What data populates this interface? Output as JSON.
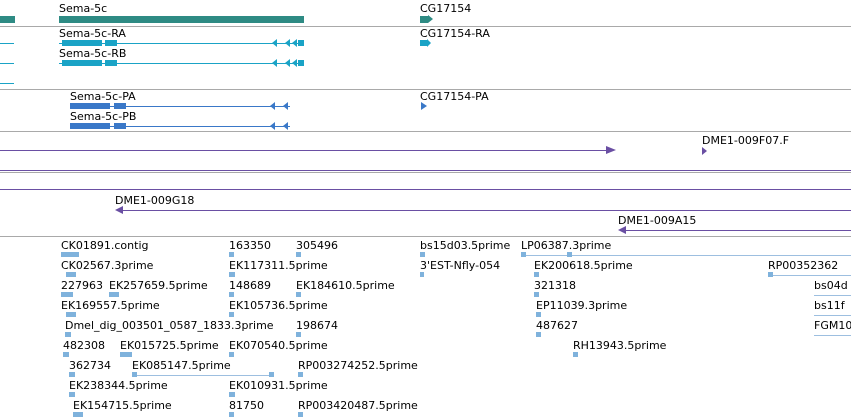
{
  "colors": {
    "gene": "#2e8b84",
    "transcript": "#1aa3c6",
    "cds": "#3a78c8",
    "clone": "#6a4fa3",
    "est": "#8ab8de",
    "divider": "#a9a9a9"
  },
  "genes": [
    {
      "label": "Sema-5c"
    },
    {
      "label": "CG17154"
    }
  ],
  "transcripts": [
    {
      "label": "Sema-5c-RA"
    },
    {
      "label": "Sema-5c-RB"
    },
    {
      "label": "CG17154-RA"
    }
  ],
  "proteins": [
    {
      "label": "Sema-5c-PA"
    },
    {
      "label": "Sema-5c-PB"
    },
    {
      "label": "CG17154-PA"
    }
  ],
  "clones_a": [
    {
      "label": "DME1-009F07.F"
    }
  ],
  "clones_b": [
    {
      "label": "DME1-009G18"
    },
    {
      "label": "DME1-009A15"
    }
  ],
  "ests": [
    {
      "label": "CK01891.contig"
    },
    {
      "label": "163350"
    },
    {
      "label": "305496"
    },
    {
      "label": "bs15d03.5prime"
    },
    {
      "label": "LP06387.3prime"
    },
    {
      "label": "CK02567.3prime"
    },
    {
      "label": "EK117311.5prime"
    },
    {
      "label": "3'EST-Nfly-054"
    },
    {
      "label": "EK200618.5prime"
    },
    {
      "label": "RP00352362"
    },
    {
      "label": "227963"
    },
    {
      "label": "EK257659.5prime"
    },
    {
      "label": "148689"
    },
    {
      "label": "EK184610.5prime"
    },
    {
      "label": "321318"
    },
    {
      "label": "bs04d"
    },
    {
      "label": "EK169557.5prime"
    },
    {
      "label": "EK105736.5prime"
    },
    {
      "label": "EP11039.3prime"
    },
    {
      "label": "bs11f"
    },
    {
      "label": "Dmel_dig_003501_0587_1833.3prime"
    },
    {
      "label": "198674"
    },
    {
      "label": "487627"
    },
    {
      "label": "FGM10"
    },
    {
      "label": "482308"
    },
    {
      "label": "EK015725.5prime"
    },
    {
      "label": "EK070540.5prime"
    },
    {
      "label": "RH13943.5prime"
    },
    {
      "label": "362734"
    },
    {
      "label": "EK085147.5prime"
    },
    {
      "label": "RP003274252.5prime"
    },
    {
      "label": "EK238344.5prime"
    },
    {
      "label": "EK010931.5prime"
    },
    {
      "label": "EK154715.5prime"
    },
    {
      "label": "81750"
    },
    {
      "label": "RP003420487.5prime"
    }
  ]
}
